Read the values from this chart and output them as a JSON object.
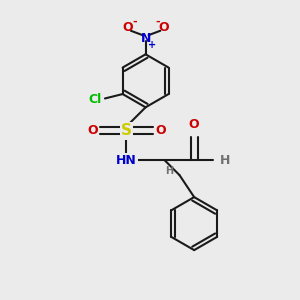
{
  "bg_color": "#ebebeb",
  "bond_color": "#1a1a1a",
  "bond_width": 1.5,
  "atom_colors": {
    "C": "#1a1a1a",
    "H": "#707070",
    "N": "#0000cc",
    "O": "#cc0000",
    "S": "#cccc00",
    "Cl": "#00bb00",
    "plus": "#0000cc",
    "minus": "#cc0000"
  },
  "font_size_atom": 9,
  "font_size_small": 7
}
